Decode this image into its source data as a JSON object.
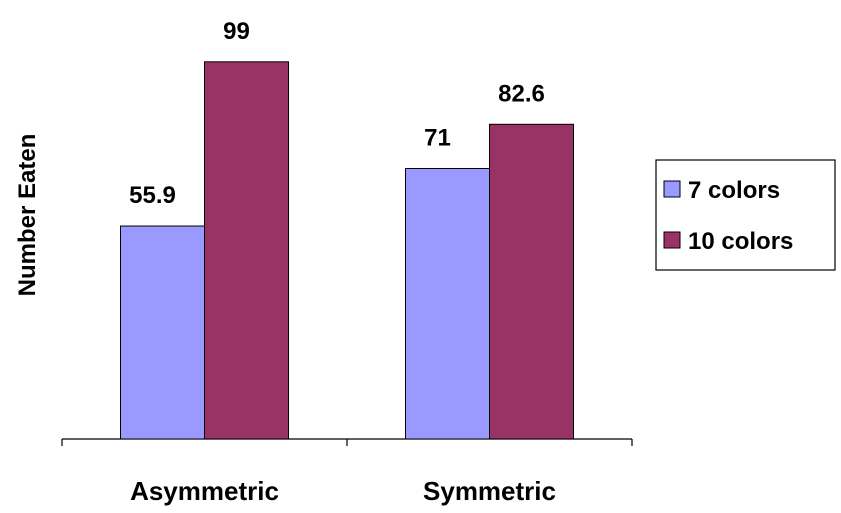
{
  "chart_data": {
    "type": "bar",
    "title": "",
    "xlabel": "",
    "ylabel": "Number Eaten",
    "categories": [
      "Asymmetric",
      "Symmetric"
    ],
    "series": [
      {
        "name": "7 colors",
        "values": [
          55.9,
          71
        ],
        "color": "#9999ff"
      },
      {
        "name": "10 colors",
        "values": [
          99,
          82.6
        ],
        "color": "#993366"
      }
    ],
    "data_labels": [
      [
        "55.9",
        "71"
      ],
      [
        "99",
        "82.6"
      ]
    ],
    "ylim": [
      0,
      100
    ],
    "grid": false,
    "legend_position": "right"
  }
}
